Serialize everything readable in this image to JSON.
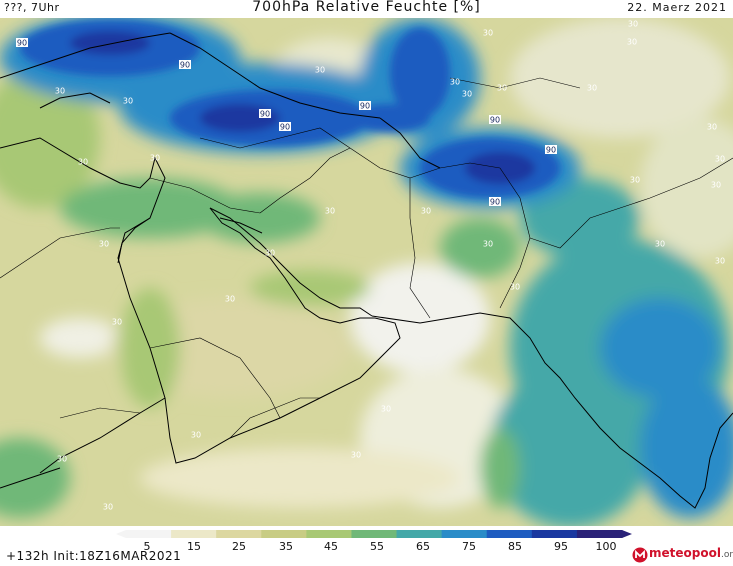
{
  "header": {
    "left": "???, 7Uhr",
    "title": "700hPa Relative Feuchte [%]",
    "date": "22. Maerz 2021"
  },
  "footer": {
    "run": "+132h  Init:18Z16MAR2021"
  },
  "logo": {
    "name": "meteopool",
    "suffix": ".org"
  },
  "colorbar": {
    "ticks": [
      "5",
      "15",
      "25",
      "35",
      "45",
      "55",
      "65",
      "75",
      "85",
      "95",
      "100"
    ],
    "colors": [
      "#f4f4f4",
      "#ece8c8",
      "#dcd7a0",
      "#c8cc84",
      "#a8c874",
      "#70b878",
      "#44a8a8",
      "#2a8cc8",
      "#1e5cc0",
      "#1a38a0",
      "#2a2278"
    ]
  },
  "map_labels": [
    "90",
    "90",
    "90",
    "90",
    "90",
    "90",
    "90",
    "90",
    "30",
    "30",
    "30",
    "30",
    "30",
    "30",
    "30",
    "30",
    "30",
    "30",
    "30",
    "30",
    "30",
    "30",
    "30",
    "30",
    "30",
    "30",
    "30",
    "30",
    "30",
    "30",
    "30",
    "30",
    "30",
    "30",
    "30",
    "30",
    "30",
    "30",
    "30"
  ]
}
